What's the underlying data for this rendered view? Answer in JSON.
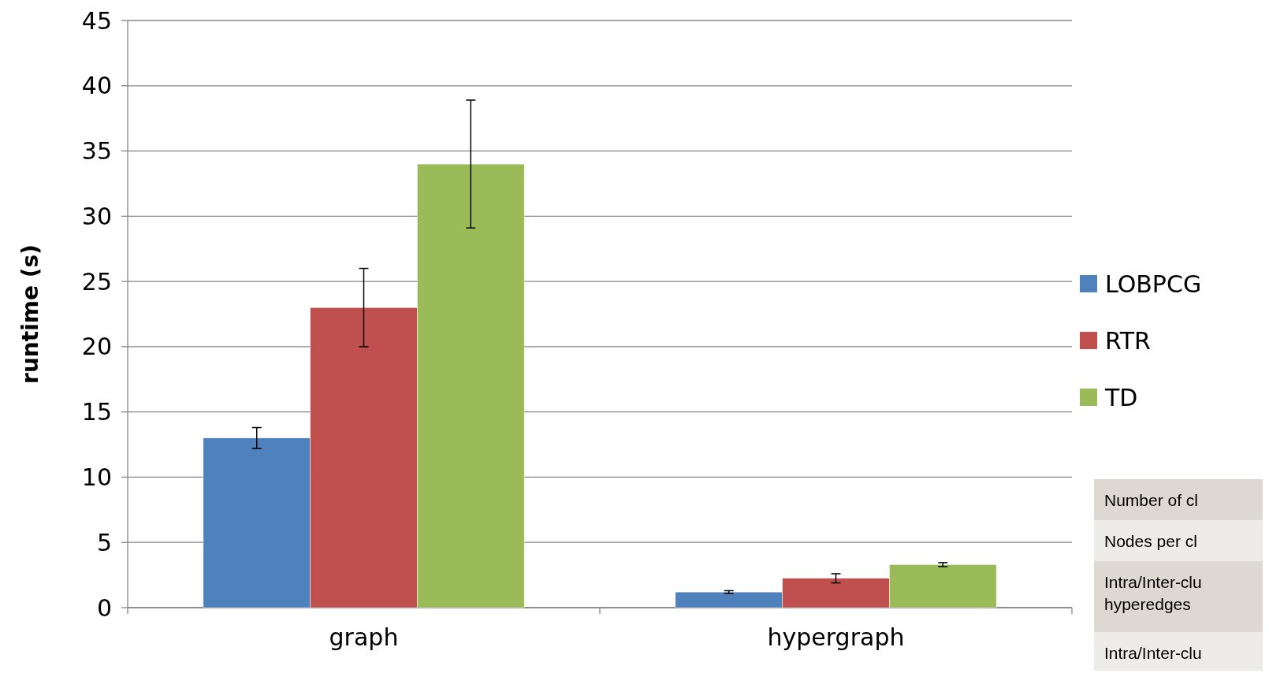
{
  "chart_data": {
    "type": "bar",
    "ylabel": "runtime (s)",
    "categories": [
      "graph",
      "hypergraph"
    ],
    "series": [
      {
        "name": "LOBPCG",
        "color": "#4f81bd",
        "values": [
          13,
          1.2
        ],
        "errors": [
          0.8,
          0.1
        ]
      },
      {
        "name": "RTR",
        "color": "#c0504d",
        "values": [
          23,
          2.25
        ],
        "errors": [
          3,
          0.35
        ]
      },
      {
        "name": "TD",
        "color": "#9bbb59",
        "values": [
          34,
          3.3
        ],
        "errors": [
          4.9,
          0.15
        ]
      }
    ],
    "ylim": [
      0,
      45
    ],
    "yticks": [
      0,
      5,
      10,
      15,
      20,
      25,
      30,
      35,
      40,
      45
    ],
    "grid": "y",
    "legend": "right",
    "annotations": [
      "Number of cl",
      "Nodes per cl",
      "Intra/Inter-clu hyperedges",
      "Intra/Inter-clu"
    ]
  }
}
